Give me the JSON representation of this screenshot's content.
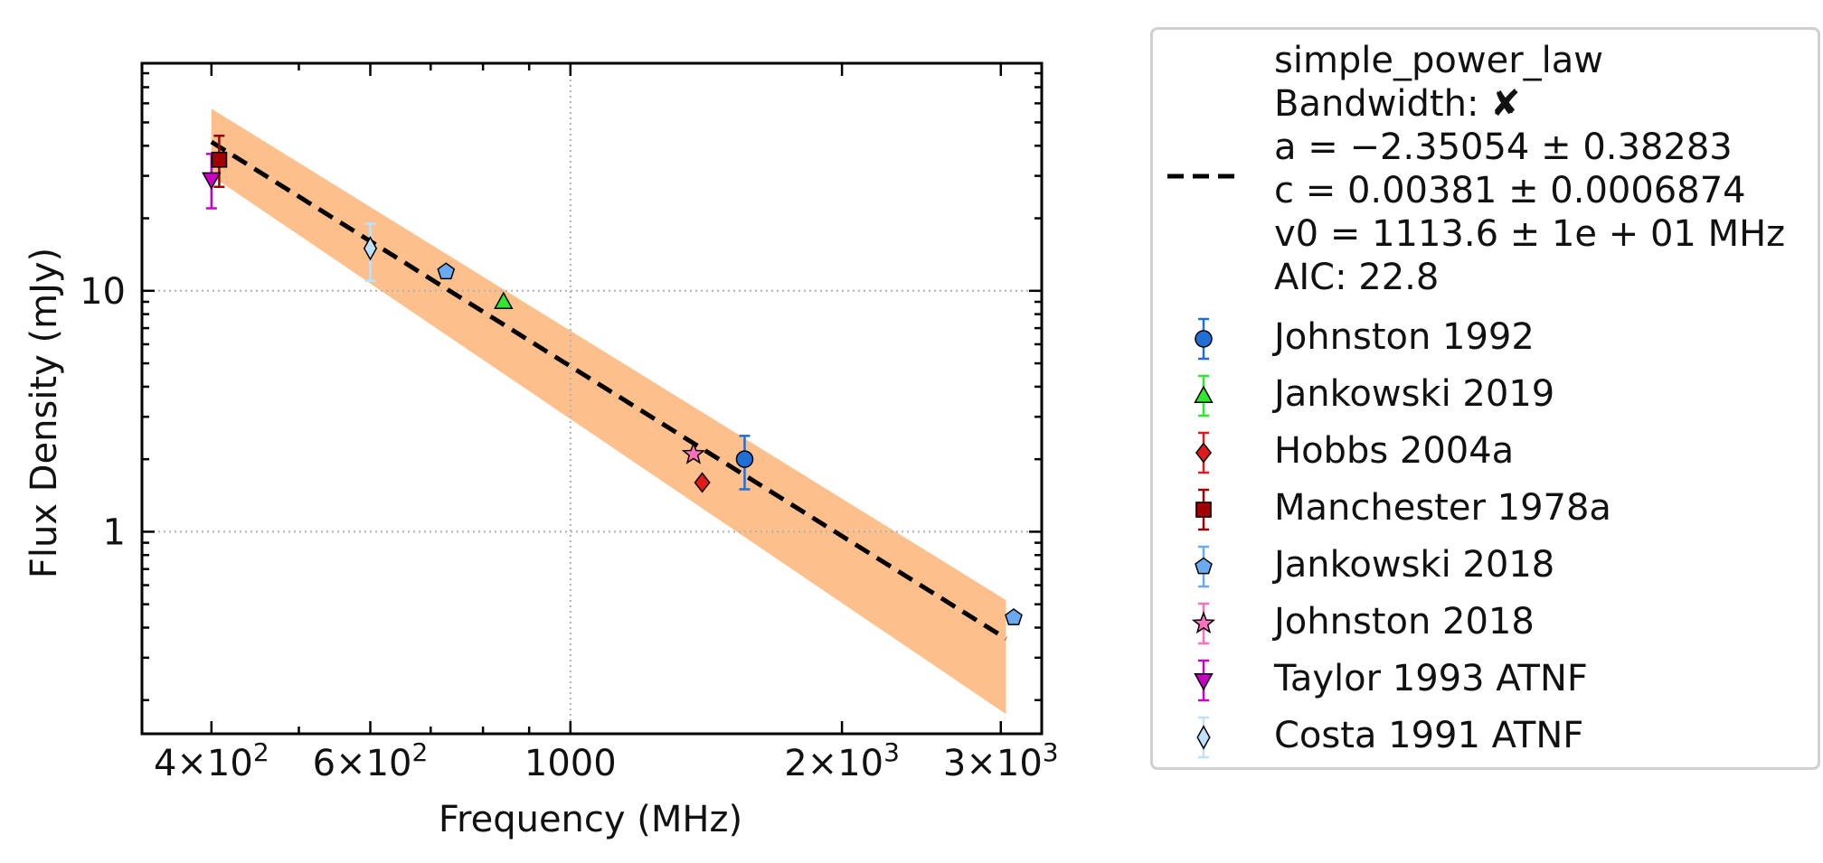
{
  "chart_data": {
    "type": "scatter",
    "xlabel": "Frequency (MHz)",
    "ylabel": "Flux Density (mJy)",
    "x_scale": "log",
    "y_scale": "log",
    "xlim": [
      335,
      3330
    ],
    "ylim": [
      0.145,
      88
    ],
    "grid": "major, dotted, at x=1000 and y=1, 10",
    "legend_placement": "outside right",
    "x_ticks": [
      {
        "value": 400,
        "base": "4",
        "exp": "2"
      },
      {
        "value": 600,
        "base": "6",
        "exp": "2"
      },
      {
        "value": 1000,
        "label": "1000"
      },
      {
        "value": 2000,
        "base": "2",
        "exp": "3"
      },
      {
        "value": 3000,
        "base": "3",
        "exp": "3"
      }
    ],
    "y_ticks": [
      {
        "value": 1,
        "label": "1"
      },
      {
        "value": 10,
        "label": "10"
      }
    ],
    "fit": {
      "name": "simple_power_law",
      "bandwidth_label": "Bandwidth: ✘",
      "param_a": "a = −2.35054 ± 0.38283",
      "param_c": "c = 0.00381 ± 0.0006874",
      "param_v0": "v0 = 1113.6 ± 1e + 01 MHz",
      "aic": "AIC: 22.8",
      "line_x": [
        400,
        3040
      ],
      "line_y": [
        41.5,
        0.36
      ],
      "band_x": [
        400,
        3040
      ],
      "band_upper": [
        57,
        0.52
      ],
      "band_lower": [
        30,
        0.175
      ],
      "line_color": "#000000",
      "band_color": "#fdbf8b"
    },
    "series": [
      {
        "name": "Johnston 1992",
        "marker": "circle",
        "color": "#1f6fd6",
        "points": [
          {
            "x": 1560,
            "y": 2.0,
            "yerr_low": 0.5,
            "yerr_high": 0.5
          }
        ]
      },
      {
        "name": "Jankowski 2019",
        "marker": "triangle",
        "color": "#2ee82e",
        "points": [
          {
            "x": 843,
            "y": 9.0
          }
        ]
      },
      {
        "name": "Hobbs 2004a",
        "marker": "diamond",
        "color": "#e31a1c",
        "points": [
          {
            "x": 1400,
            "y": 1.6
          }
        ]
      },
      {
        "name": "Manchester 1978a",
        "marker": "square",
        "color": "#a00000",
        "points": [
          {
            "x": 408,
            "y": 35,
            "yerr_low": 8,
            "yerr_high": 9
          }
        ]
      },
      {
        "name": "Jankowski 2018",
        "marker": "pentagon",
        "color": "#6aaaf0",
        "points": [
          {
            "x": 728,
            "y": 12.0
          },
          {
            "x": 3100,
            "y": 0.44
          }
        ]
      },
      {
        "name": "Johnston 2018",
        "marker": "star",
        "color": "#ff6fc0",
        "points": [
          {
            "x": 1369,
            "y": 2.1
          }
        ]
      },
      {
        "name": "Taylor 1993 ATNF",
        "marker": "triangle-down",
        "color": "#c800c8",
        "points": [
          {
            "x": 400,
            "y": 29,
            "yerr_low": 7,
            "yerr_high": 8
          }
        ]
      },
      {
        "name": "Costa 1991 ATNF",
        "marker": "thin-diamond",
        "color": "#bfe0ff",
        "points": [
          {
            "x": 600,
            "y": 15,
            "yerr_low": 4,
            "yerr_high": 4
          }
        ]
      }
    ]
  }
}
